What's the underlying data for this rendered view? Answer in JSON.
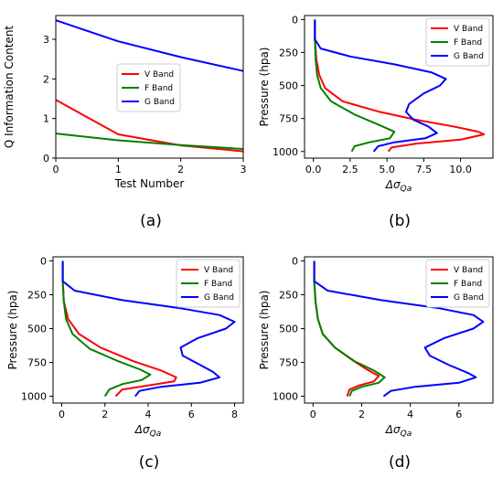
{
  "figure": {
    "panel_labels": [
      "(a)",
      "(b)",
      "(c)",
      "(d)"
    ],
    "colors": {
      "V Band": "#ff0000",
      "F Band": "#008000",
      "G Band": "#0000ff"
    }
  },
  "chart_data": [
    {
      "id": "a",
      "type": "line",
      "title": "",
      "xlabel": "Test Number",
      "ylabel": "Q Information Content",
      "xlim": [
        0,
        3
      ],
      "ylim": [
        0,
        3.6
      ],
      "xticks": [
        0,
        1,
        2,
        3
      ],
      "yticks": [
        0,
        1,
        2,
        3
      ],
      "grid": false,
      "legend_position": "center-right",
      "x": [
        0,
        1,
        2,
        3
      ],
      "series": [
        {
          "name": "V Band",
          "color": "#ff0000",
          "values": [
            1.47,
            0.6,
            0.32,
            0.17
          ]
        },
        {
          "name": "F Band",
          "color": "#008000",
          "values": [
            0.62,
            0.45,
            0.33,
            0.23
          ]
        },
        {
          "name": "G Band",
          "color": "#0000ff",
          "values": [
            3.48,
            2.95,
            2.55,
            2.2
          ]
        }
      ]
    },
    {
      "id": "b",
      "type": "line",
      "title": "",
      "xlabel": "Δσ_Qa",
      "ylabel": "Pressure (hpa)",
      "xlim": [
        -0.6,
        12.2
      ],
      "ylim": [
        1050,
        -30
      ],
      "xticks": [
        0.0,
        2.5,
        5.0,
        7.5,
        10.0
      ],
      "xtick_labels": [
        "0.0",
        "2.5",
        "5.0",
        "7.5",
        "10.0"
      ],
      "yticks": [
        0,
        250,
        500,
        750,
        1000
      ],
      "grid": false,
      "legend_position": "top-right",
      "series": [
        {
          "name": "V Band",
          "color": "#ff0000",
          "points": [
            [
              0.1,
              10
            ],
            [
              0.1,
              150
            ],
            [
              0.2,
              300
            ],
            [
              0.4,
              420
            ],
            [
              0.8,
              520
            ],
            [
              2.0,
              620
            ],
            [
              4.5,
              700
            ],
            [
              7.0,
              760
            ],
            [
              9.5,
              810
            ],
            [
              11.2,
              850
            ],
            [
              11.6,
              870
            ],
            [
              10.0,
              910
            ],
            [
              7.0,
              940
            ],
            [
              5.3,
              970
            ],
            [
              5.1,
              1000
            ]
          ]
        },
        {
          "name": "F Band",
          "color": "#008000",
          "points": [
            [
              0.1,
              10
            ],
            [
              0.1,
              150
            ],
            [
              0.15,
              300
            ],
            [
              0.25,
              420
            ],
            [
              0.5,
              520
            ],
            [
              1.2,
              620
            ],
            [
              2.8,
              720
            ],
            [
              4.5,
              800
            ],
            [
              5.5,
              850
            ],
            [
              5.2,
              900
            ],
            [
              3.8,
              930
            ],
            [
              2.8,
              960
            ],
            [
              2.6,
              1000
            ]
          ]
        },
        {
          "name": "G Band",
          "color": "#0000ff",
          "points": [
            [
              0.1,
              0
            ],
            [
              0.1,
              150
            ],
            [
              0.5,
              220
            ],
            [
              2.5,
              280
            ],
            [
              5.5,
              340
            ],
            [
              8.0,
              400
            ],
            [
              9.0,
              450
            ],
            [
              8.6,
              500
            ],
            [
              7.5,
              560
            ],
            [
              6.5,
              640
            ],
            [
              6.3,
              700
            ],
            [
              6.8,
              760
            ],
            [
              7.8,
              810
            ],
            [
              8.4,
              860
            ],
            [
              7.6,
              900
            ],
            [
              5.5,
              930
            ],
            [
              4.4,
              960
            ],
            [
              4.1,
              1000
            ]
          ]
        }
      ]
    },
    {
      "id": "c",
      "type": "line",
      "title": "",
      "xlabel": "Δσ_Qa",
      "ylabel": "Pressure (hpa)",
      "xlim": [
        -0.4,
        8.4
      ],
      "ylim": [
        1050,
        -30
      ],
      "xticks": [
        0,
        2,
        4,
        6,
        8
      ],
      "xtick_labels": [
        "0",
        "2",
        "4",
        "6",
        "8"
      ],
      "yticks": [
        0,
        250,
        500,
        750,
        1000
      ],
      "grid": false,
      "legend_position": "top-right",
      "series": [
        {
          "name": "V Band",
          "color": "#ff0000",
          "points": [
            [
              0.05,
              10
            ],
            [
              0.05,
              150
            ],
            [
              0.1,
              300
            ],
            [
              0.3,
              430
            ],
            [
              0.8,
              540
            ],
            [
              1.8,
              640
            ],
            [
              3.3,
              740
            ],
            [
              4.6,
              810
            ],
            [
              5.3,
              860
            ],
            [
              5.2,
              890
            ],
            [
              4.0,
              920
            ],
            [
              2.8,
              950
            ],
            [
              2.5,
              1000
            ]
          ]
        },
        {
          "name": "F Band",
          "color": "#008000",
          "points": [
            [
              0.05,
              10
            ],
            [
              0.05,
              150
            ],
            [
              0.1,
              300
            ],
            [
              0.2,
              430
            ],
            [
              0.5,
              540
            ],
            [
              1.3,
              650
            ],
            [
              2.6,
              740
            ],
            [
              3.6,
              800
            ],
            [
              4.1,
              840
            ],
            [
              3.7,
              880
            ],
            [
              2.8,
              910
            ],
            [
              2.2,
              950
            ],
            [
              2.0,
              1000
            ]
          ]
        },
        {
          "name": "G Band",
          "color": "#0000ff",
          "points": [
            [
              0.05,
              0
            ],
            [
              0.05,
              150
            ],
            [
              0.6,
              220
            ],
            [
              2.8,
              290
            ],
            [
              5.5,
              350
            ],
            [
              7.3,
              400
            ],
            [
              8.0,
              450
            ],
            [
              7.6,
              500
            ],
            [
              6.3,
              570
            ],
            [
              5.5,
              640
            ],
            [
              5.6,
              700
            ],
            [
              6.3,
              760
            ],
            [
              7.0,
              820
            ],
            [
              7.3,
              860
            ],
            [
              6.4,
              900
            ],
            [
              4.6,
              930
            ],
            [
              3.6,
              960
            ],
            [
              3.4,
              1000
            ]
          ]
        }
      ]
    },
    {
      "id": "d",
      "type": "line",
      "title": "",
      "xlabel": "Δσ_Qa",
      "ylabel": "Pressure (hpa)",
      "xlim": [
        -0.35,
        7.4
      ],
      "ylim": [
        1050,
        -30
      ],
      "xticks": [
        0,
        2,
        4,
        6
      ],
      "xtick_labels": [
        "0",
        "2",
        "4",
        "6"
      ],
      "yticks": [
        0,
        250,
        500,
        750,
        1000
      ],
      "grid": false,
      "legend_position": "top-right",
      "series": [
        {
          "name": "V Band",
          "color": "#ff0000",
          "points": [
            [
              0.05,
              10
            ],
            [
              0.05,
              150
            ],
            [
              0.1,
              300
            ],
            [
              0.2,
              430
            ],
            [
              0.4,
              540
            ],
            [
              0.9,
              640
            ],
            [
              1.6,
              730
            ],
            [
              2.2,
              800
            ],
            [
              2.7,
              850
            ],
            [
              2.5,
              890
            ],
            [
              1.9,
              920
            ],
            [
              1.5,
              950
            ],
            [
              1.4,
              1000
            ]
          ]
        },
        {
          "name": "F Band",
          "color": "#008000",
          "points": [
            [
              0.05,
              10
            ],
            [
              0.05,
              150
            ],
            [
              0.1,
              300
            ],
            [
              0.2,
              430
            ],
            [
              0.4,
              540
            ],
            [
              0.9,
              640
            ],
            [
              1.7,
              740
            ],
            [
              2.5,
              810
            ],
            [
              2.95,
              860
            ],
            [
              2.7,
              900
            ],
            [
              2.0,
              930
            ],
            [
              1.6,
              960
            ],
            [
              1.5,
              1000
            ]
          ]
        },
        {
          "name": "G Band",
          "color": "#0000ff",
          "points": [
            [
              0.05,
              0
            ],
            [
              0.05,
              150
            ],
            [
              0.6,
              220
            ],
            [
              2.8,
              290
            ],
            [
              5.2,
              350
            ],
            [
              6.6,
              400
            ],
            [
              7.0,
              450
            ],
            [
              6.6,
              500
            ],
            [
              5.4,
              570
            ],
            [
              4.6,
              640
            ],
            [
              4.8,
              700
            ],
            [
              5.6,
              770
            ],
            [
              6.4,
              830
            ],
            [
              6.7,
              860
            ],
            [
              6.0,
              900
            ],
            [
              4.2,
              930
            ],
            [
              3.2,
              960
            ],
            [
              2.9,
              1000
            ]
          ]
        }
      ]
    }
  ]
}
